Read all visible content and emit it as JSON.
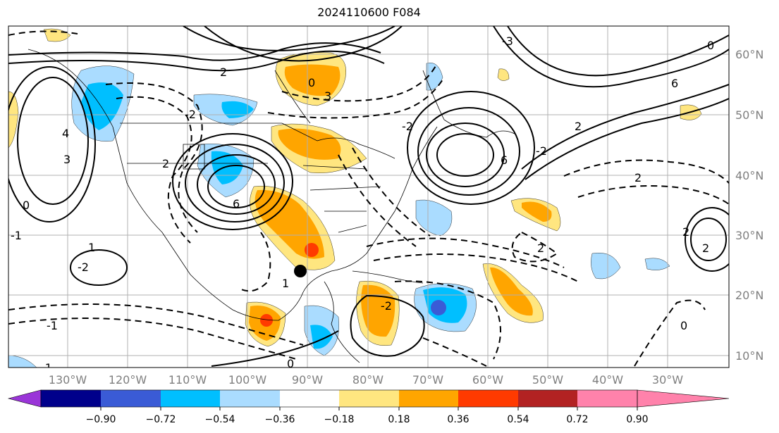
{
  "title": "2024110600 F084",
  "lon_labels": [
    "130°W",
    "120°W",
    "110°W",
    "100°W",
    "90°W",
    "80°W",
    "70°W",
    "60°W",
    "50°W",
    "40°W",
    "30°W"
  ],
  "lat_labels": [
    "60°N",
    "50°N",
    "40°N",
    "30°N",
    "20°N",
    "10°N"
  ],
  "colorbar": {
    "ticks": [
      "−0.90",
      "−0.72",
      "−0.54",
      "−0.36",
      "−0.18",
      "0.18",
      "0.36",
      "0.54",
      "0.72",
      "0.90"
    ],
    "colors": [
      "#9a35d8",
      "#00008b",
      "#3a5bd6",
      "#00bfff",
      "#aadcff",
      "#ffffff",
      "#ffe680",
      "#ffa500",
      "#ff3a00",
      "#b22222",
      "#ff82ab"
    ]
  },
  "contour_labels": [
    "0",
    "3",
    "2",
    "-3",
    "-2",
    "2",
    "3",
    "4",
    "6",
    "-1",
    "1",
    "0",
    "-2",
    "6",
    "2",
    "-2",
    "0",
    "-1",
    "0",
    "1",
    "2",
    "-1",
    "2",
    "0",
    "6",
    "2",
    "-2",
    "2",
    "-2"
  ]
}
